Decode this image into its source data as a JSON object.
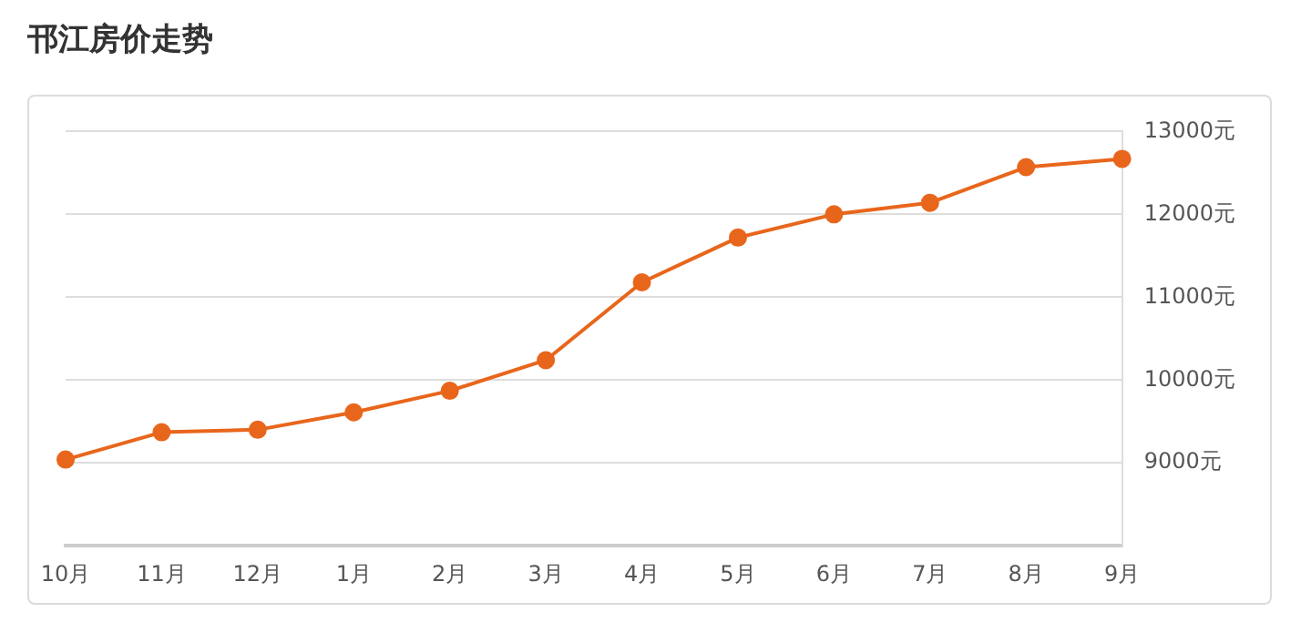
{
  "chart_data": {
    "type": "line",
    "title": "邗江房价走势",
    "categories": [
      "10月",
      "11月",
      "12月",
      "1月",
      "2月",
      "3月",
      "4月",
      "5月",
      "6月",
      "7月",
      "8月",
      "9月"
    ],
    "series": [
      {
        "color": "#e8661c",
        "values": [
          9040,
          9370,
          9400,
          9610,
          9870,
          10240,
          11180,
          11720,
          12000,
          12140,
          12570,
          12670
        ]
      }
    ],
    "ylim": [
      8000,
      13000
    ],
    "yticks": [
      {
        "value": 9000,
        "label": "9000元"
      },
      {
        "value": 10000,
        "label": "10000元"
      },
      {
        "value": 11000,
        "label": "11000元"
      },
      {
        "value": 12000,
        "label": "12000元"
      },
      {
        "value": 13000,
        "label": "13000元"
      }
    ],
    "grid": "y",
    "marker": "circle",
    "line_style": "solid",
    "legend": false
  }
}
